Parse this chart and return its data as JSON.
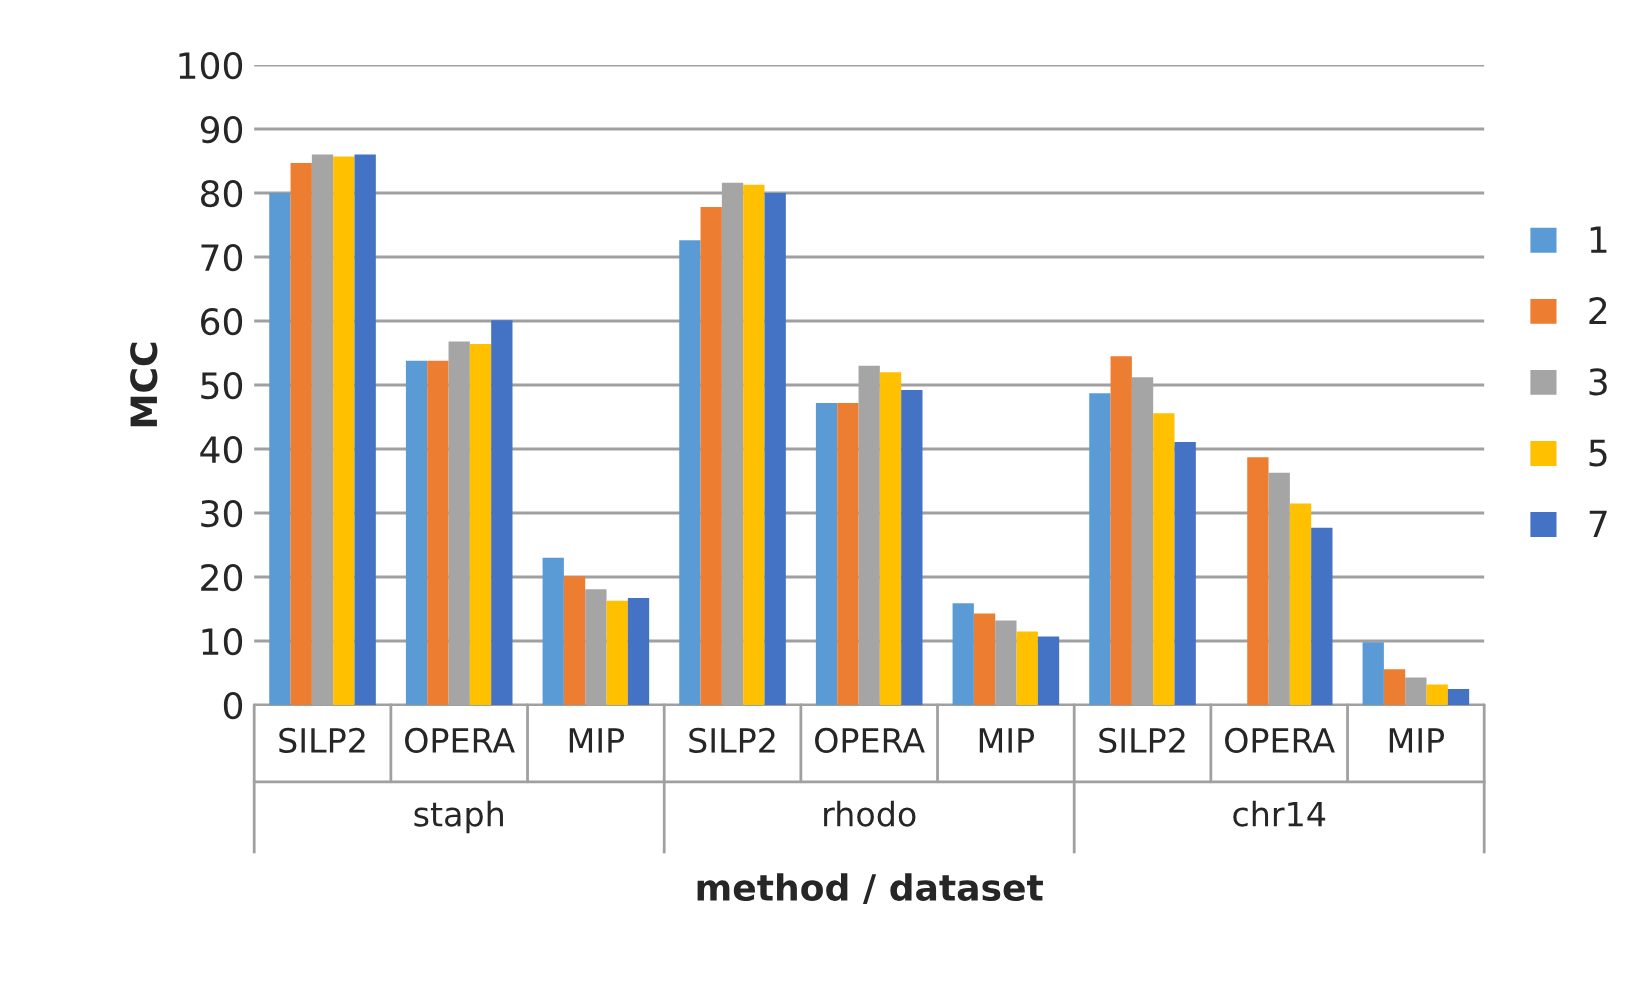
{
  "chart_data": {
    "type": "bar",
    "xlabel": "method / dataset",
    "ylabel": "MCC",
    "categories": [
      "SILP2",
      "OPERA",
      "MIP",
      "SILP2",
      "OPERA",
      "MIP",
      "SILP2",
      "OPERA",
      "MIP"
    ],
    "annotations": [
      "staph",
      "rhodo",
      "chr14"
    ],
    "series": [
      {
        "name": "1",
        "color": "#5b9bd5",
        "values": [
          80,
          53.8,
          23,
          72.6,
          47.2,
          15.9,
          48.7,
          null,
          9.8
        ]
      },
      {
        "name": "2",
        "color": "#ed7d31",
        "values": [
          84.7,
          53.8,
          20.1,
          77.8,
          47.2,
          14.3,
          54.5,
          38.7,
          5.6
        ]
      },
      {
        "name": "3",
        "color": "#a5a5a5",
        "values": [
          86,
          56.8,
          18.1,
          81.6,
          53,
          13.2,
          51.2,
          36.3,
          4.3
        ]
      },
      {
        "name": "5",
        "color": "#ffc000",
        "values": [
          85.7,
          56.4,
          16.3,
          81.3,
          52,
          11.5,
          45.6,
          31.5,
          3.2
        ]
      },
      {
        "name": "7",
        "color": "#4472c4",
        "values": [
          86,
          60.1,
          16.7,
          80,
          49.2,
          10.7,
          41.1,
          27.7,
          2.5
        ]
      }
    ],
    "ylim": [
      0,
      100
    ],
    "yticks": [
      0,
      10,
      20,
      30,
      40,
      50,
      60,
      70,
      80,
      90,
      100
    ],
    "grid": "y",
    "legend": "right"
  }
}
